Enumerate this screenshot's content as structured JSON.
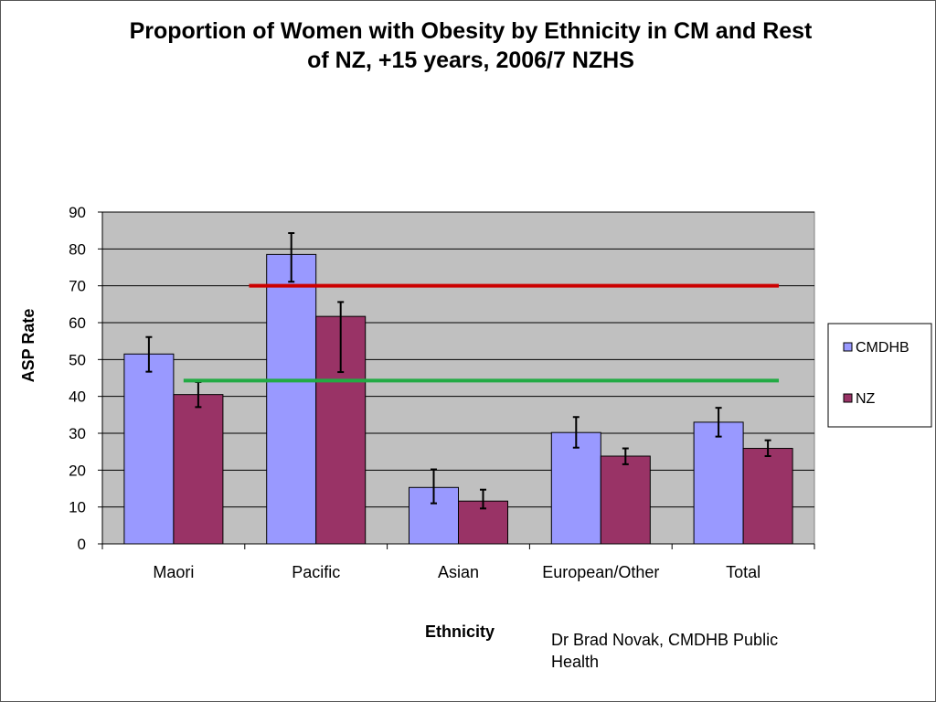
{
  "title_line1": "Proportion of Women with Obesity by Ethnicity in CM and Rest",
  "title_line2": "of NZ, +15 years, 2006/7 NZHS",
  "credit": "Dr Brad Novak, CMDHB Public Health",
  "chart_data": {
    "type": "bar",
    "title": "Proportion of Women with Obesity by Ethnicity in CM and Rest of NZ, +15 years, 2006/7 NZHS",
    "xlabel": "Ethnicity",
    "ylabel": "ASP Rate",
    "ylim": [
      0,
      90
    ],
    "yticks": [
      0,
      10,
      20,
      30,
      40,
      50,
      60,
      70,
      80,
      90
    ],
    "grid": true,
    "legend_position": "right",
    "categories": [
      "Maori",
      "Pacific",
      "Asian",
      "European/Other",
      "Total"
    ],
    "series": [
      {
        "name": "CMDHB",
        "color": "#9999ff",
        "values": [
          51.5,
          78.5,
          15.3,
          30.2,
          33.0
        ],
        "error_low": [
          46.7,
          71.1,
          11.0,
          26.1,
          29.1
        ],
        "error_high": [
          56.1,
          84.3,
          20.2,
          34.4,
          36.9
        ]
      },
      {
        "name": "NZ",
        "color": "#993366",
        "values": [
          40.5,
          61.7,
          11.6,
          23.8,
          25.9
        ],
        "error_low": [
          37.1,
          46.6,
          9.6,
          21.6,
          23.8
        ],
        "error_high": [
          43.9,
          65.6,
          14.7,
          25.9,
          28.1
        ]
      }
    ],
    "reference_lines": [
      {
        "value": 70,
        "color": "#cc0000",
        "from_category": 1,
        "to_category": 4
      },
      {
        "value": 44.3,
        "color": "#22aa44",
        "from_category": 0,
        "to_category": 4
      }
    ],
    "plot_background": "#c0c0c0"
  }
}
